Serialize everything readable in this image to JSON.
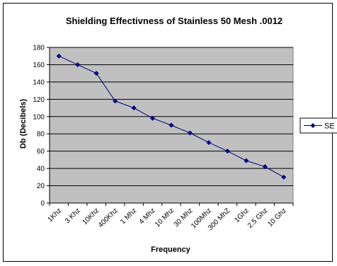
{
  "chart_data": {
    "type": "line",
    "title": "Shielding Effectivness of Stainless 50 Mesh .0012",
    "xlabel": "Frequency",
    "ylabel": "Db (Decibels)",
    "categories": [
      "1Khz",
      "3 Khz",
      "10Khz",
      "400Khz",
      "1 Mhz",
      "4 Mhz",
      "10 Mhz",
      "30 Mhz",
      "100Mhz",
      "300 MhZ",
      "1Ghz",
      "2.5 Ghz",
      "10 Ghz"
    ],
    "series": [
      {
        "name": "SE",
        "values": [
          170,
          160,
          150,
          118,
          110,
          98,
          90,
          81,
          70,
          60,
          49,
          42,
          30
        ]
      }
    ],
    "ylim": [
      0,
      180
    ],
    "yticks": [
      0,
      20,
      40,
      60,
      80,
      100,
      120,
      140,
      160,
      180
    ],
    "grid": "horizontal",
    "legend_position": "right",
    "colors": {
      "plot_background": "#c0c0c0",
      "series": "#000080",
      "grid": "#000000"
    }
  }
}
